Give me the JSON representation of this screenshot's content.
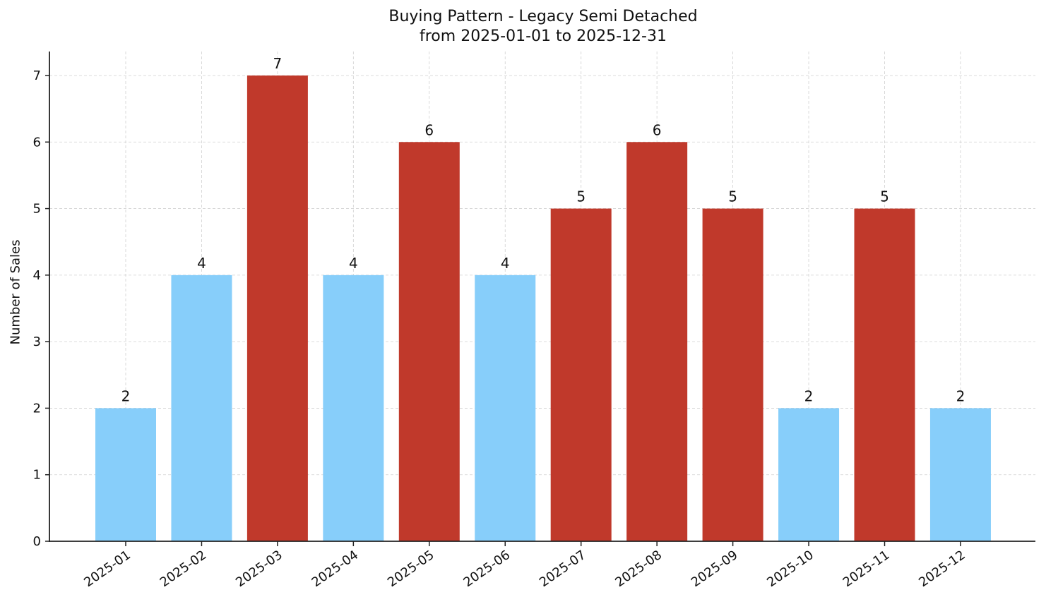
{
  "chart_data": {
    "type": "bar",
    "title": "Buying Pattern - Legacy Semi Detached",
    "subtitle": "from 2025-01-01 to 2025-12-31",
    "xlabel": "",
    "ylabel": "Number of Sales",
    "categories": [
      "2025-01",
      "2025-02",
      "2025-03",
      "2025-04",
      "2025-05",
      "2025-06",
      "2025-07",
      "2025-08",
      "2025-09",
      "2025-10",
      "2025-11",
      "2025-12"
    ],
    "values": [
      2,
      4,
      7,
      4,
      6,
      4,
      5,
      6,
      5,
      2,
      5,
      2
    ],
    "bar_colors": [
      "#87CEFA",
      "#87CEFA",
      "#C0392B",
      "#87CEFA",
      "#C0392B",
      "#87CEFA",
      "#C0392B",
      "#C0392B",
      "#C0392B",
      "#87CEFA",
      "#C0392B",
      "#87CEFA"
    ],
    "data_labels": [
      "2",
      "4",
      "7",
      "4",
      "6",
      "4",
      "5",
      "6",
      "5",
      "2",
      "5",
      "2"
    ],
    "yticks": [
      0,
      1,
      2,
      3,
      4,
      5,
      6,
      7
    ],
    "ylim": [
      0,
      7.35
    ],
    "grid": true,
    "legend": null,
    "xtick_rotation": 35
  },
  "colors": {
    "low": "#87CEFA",
    "high": "#C0392B",
    "grid": "#d0d0d0",
    "axis": "#222222"
  }
}
